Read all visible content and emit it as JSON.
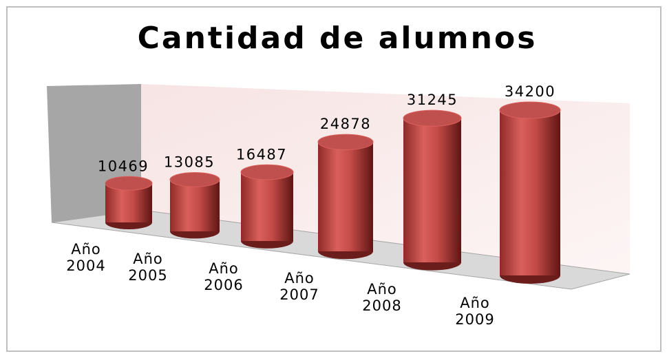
{
  "chart_data": {
    "type": "bar",
    "title": "Cantidad de alumnos",
    "categories": [
      "Año 2004",
      "Año 2005",
      "Año 2006",
      "Año 2007",
      "Año 2008",
      "Año 2009"
    ],
    "values": [
      10469,
      13085,
      16487,
      24878,
      31245,
      34200
    ],
    "color": "#c0504d"
  }
}
